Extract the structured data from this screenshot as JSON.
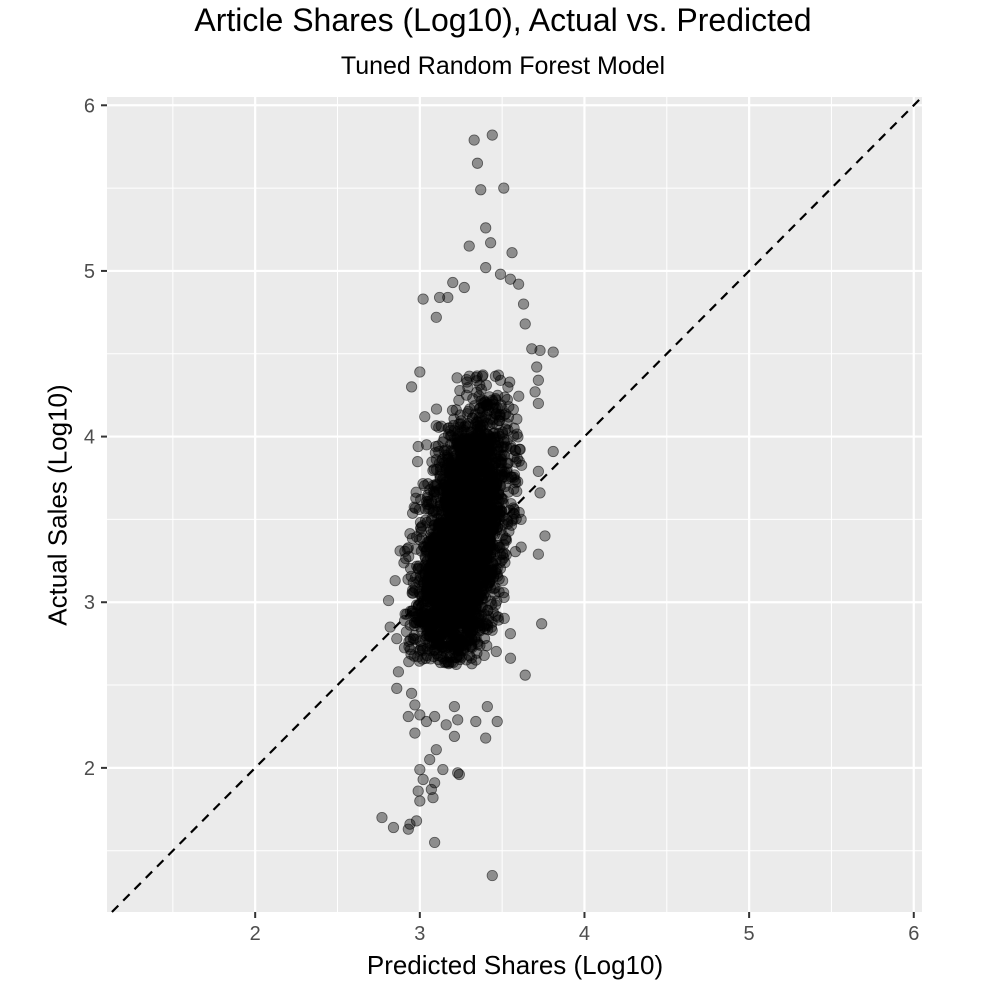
{
  "chart_data": {
    "type": "scatter",
    "title": "Article Shares (Log10), Actual vs. Predicted",
    "subtitle": "Tuned Random Forest Model",
    "xlabel": "Predicted Shares (Log10)",
    "ylabel": "Actual Sales (Log10)",
    "xlim": [
      1.1,
      6.05
    ],
    "ylim": [
      1.13,
      6.05
    ],
    "x_ticks": [
      2,
      3,
      4,
      5,
      6
    ],
    "y_ticks": [
      2,
      3,
      4,
      5,
      6
    ],
    "x_tick_labels": [
      "2",
      "3",
      "4",
      "5",
      "6"
    ],
    "y_tick_labels": [
      "2",
      "3",
      "4",
      "5",
      "6"
    ],
    "grid": true,
    "background": "#EBEBEB",
    "grid_color": "#FFFFFF",
    "point_color": "#000000",
    "point_opacity": 0.4,
    "reference_line": {
      "slope": 1,
      "intercept": 0,
      "style": "dashed",
      "color": "#000000"
    },
    "cluster": {
      "n_points": 3200,
      "x_mean": 3.26,
      "x_sd": 0.14,
      "y_mean": 3.35,
      "y_sd": 0.42,
      "correlation": 0.45
    },
    "points": [
      [
        3.44,
        5.82
      ],
      [
        3.33,
        5.79
      ],
      [
        3.35,
        5.65
      ],
      [
        3.37,
        5.49
      ],
      [
        3.51,
        5.5
      ],
      [
        3.4,
        5.26
      ],
      [
        3.3,
        5.15
      ],
      [
        3.43,
        5.17
      ],
      [
        3.56,
        5.11
      ],
      [
        3.4,
        5.02
      ],
      [
        3.49,
        4.98
      ],
      [
        3.55,
        4.95
      ],
      [
        3.6,
        4.92
      ],
      [
        3.2,
        4.93
      ],
      [
        3.27,
        4.9
      ],
      [
        3.12,
        4.84
      ],
      [
        3.17,
        4.84
      ],
      [
        3.63,
        4.8
      ],
      [
        3.02,
        4.83
      ],
      [
        3.1,
        4.72
      ],
      [
        3.64,
        4.68
      ],
      [
        3.73,
        4.52
      ],
      [
        3.81,
        4.51
      ],
      [
        3.68,
        4.53
      ],
      [
        3.71,
        4.42
      ],
      [
        2.95,
        4.3
      ],
      [
        3.0,
        4.39
      ],
      [
        3.72,
        4.34
      ],
      [
        3.7,
        4.27
      ],
      [
        3.72,
        4.2
      ],
      [
        3.81,
        3.91
      ],
      [
        3.72,
        3.79
      ],
      [
        3.73,
        3.66
      ],
      [
        2.99,
        3.94
      ],
      [
        3.03,
        4.12
      ],
      [
        3.76,
        3.4
      ],
      [
        3.72,
        3.29
      ],
      [
        3.74,
        2.87
      ],
      [
        3.64,
        2.56
      ],
      [
        3.55,
        2.81
      ],
      [
        2.81,
        3.01
      ],
      [
        2.85,
        3.13
      ],
      [
        2.88,
        3.31
      ],
      [
        2.82,
        2.85
      ],
      [
        2.86,
        2.78
      ],
      [
        2.87,
        2.58
      ],
      [
        2.86,
        2.48
      ],
      [
        2.95,
        2.45
      ],
      [
        2.97,
        2.38
      ],
      [
        2.93,
        2.31
      ],
      [
        3.0,
        2.32
      ],
      [
        2.97,
        2.21
      ],
      [
        3.04,
        2.28
      ],
      [
        3.09,
        2.31
      ],
      [
        3.16,
        2.26
      ],
      [
        3.23,
        2.29
      ],
      [
        3.21,
        2.37
      ],
      [
        3.34,
        2.28
      ],
      [
        3.41,
        2.37
      ],
      [
        3.47,
        2.28
      ],
      [
        3.21,
        2.19
      ],
      [
        3.4,
        2.18
      ],
      [
        3.06,
        2.05
      ],
      [
        3.1,
        2.11
      ],
      [
        3.0,
        1.99
      ],
      [
        3.14,
        1.99
      ],
      [
        3.23,
        1.97
      ],
      [
        3.24,
        1.96
      ],
      [
        3.02,
        1.93
      ],
      [
        3.09,
        1.91
      ],
      [
        2.99,
        1.86
      ],
      [
        3.07,
        1.87
      ],
      [
        3.0,
        1.8
      ],
      [
        3.08,
        1.82
      ],
      [
        2.77,
        1.7
      ],
      [
        2.84,
        1.64
      ],
      [
        2.93,
        1.63
      ],
      [
        2.94,
        1.66
      ],
      [
        2.98,
        1.68
      ],
      [
        3.09,
        1.55
      ],
      [
        3.44,
        1.35
      ]
    ]
  }
}
